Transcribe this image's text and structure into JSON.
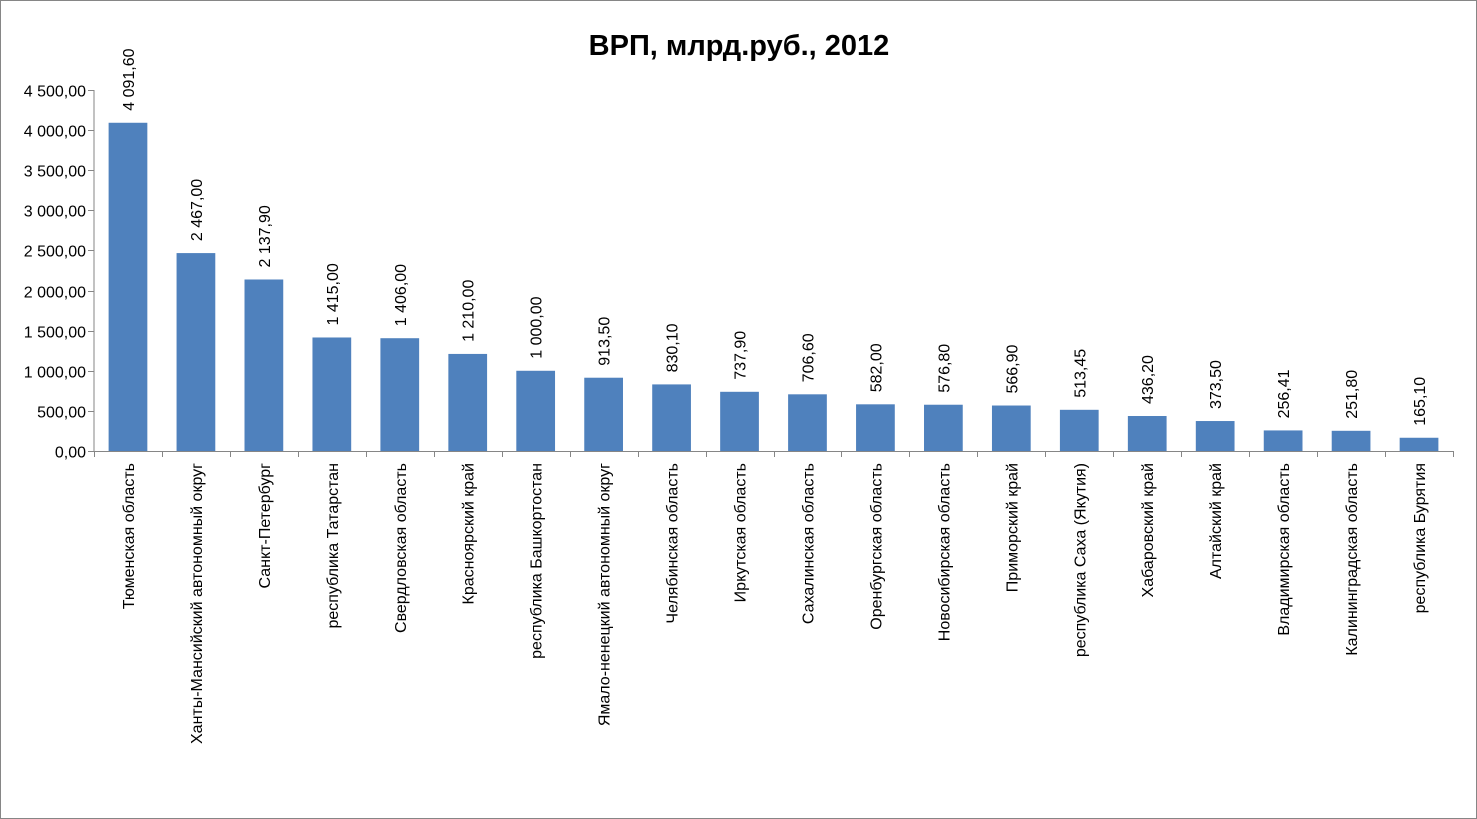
{
  "chart_data": {
    "type": "bar",
    "title": "ВРП, млрд.руб., 2012",
    "xlabel": "",
    "ylabel": "",
    "ylim": [
      0,
      4500
    ],
    "y_ticks": [
      0,
      500,
      1000,
      1500,
      2000,
      2500,
      3000,
      3500,
      4000,
      4500
    ],
    "y_tick_labels": [
      "0,00",
      "500,00",
      "1 000,00",
      "1 500,00",
      "2 000,00",
      "2 500,00",
      "3 000,00",
      "3 500,00",
      "4 000,00",
      "4 500,00"
    ],
    "grid": false,
    "legend": "none",
    "bar_color": "#4F81BD",
    "categories": [
      "Тюменская область",
      "Ханты-Мансийский автономный округ",
      "Санкт-Петербург",
      "республика Татарстан",
      "Свердловская область",
      "Красноярский край",
      "республика Башкортостан",
      "Ямало-ненецкий автономный округ",
      "Челябинская область",
      "Иркутская область",
      "Сахалинская область",
      "Оренбургская область",
      "Новосибирская область",
      "Приморский край",
      "республика Саха (Якутия)",
      "Хабаровский край",
      "Алтайский край",
      "Владимирская область",
      "Калининградская область",
      "республика Бурятия"
    ],
    "values": [
      4091.6,
      2467.0,
      2137.9,
      1415.0,
      1406.0,
      1210.0,
      1000.0,
      913.5,
      830.1,
      737.9,
      706.6,
      582.0,
      576.8,
      566.9,
      513.45,
      436.2,
      373.5,
      256.41,
      251.8,
      165.1
    ],
    "data_labels": [
      "4 091,60",
      "2 467,00",
      "2 137,90",
      "1 415,00",
      "1 406,00",
      "1 210,00",
      "1 000,00",
      "913,50",
      "830,10",
      "737,90",
      "706,60",
      "582,00",
      "576,80",
      "566,90",
      "513,45",
      "436,20",
      "373,50",
      "256,41",
      "251,80",
      "165,10"
    ]
  }
}
